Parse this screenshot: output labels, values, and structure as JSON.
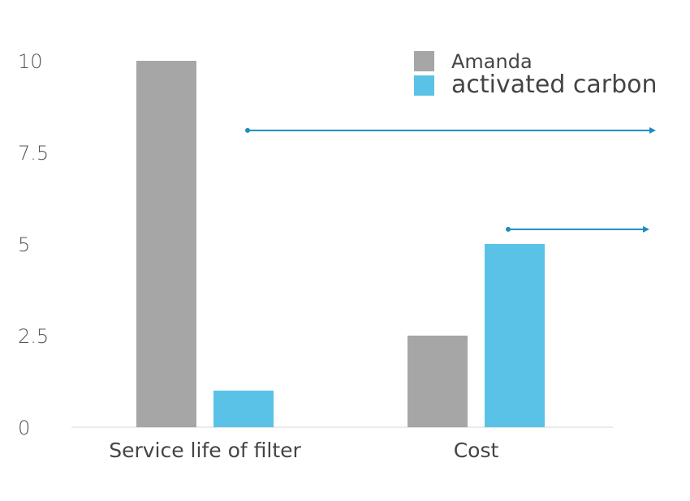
{
  "chart_data": {
    "type": "bar",
    "categories": [
      "Service life of filter",
      "Cost"
    ],
    "series": [
      {
        "name": "Amanda",
        "values": [
          10,
          2.5
        ],
        "color": "#a6a6a6"
      },
      {
        "name": "activated carbon",
        "values": [
          1,
          5
        ],
        "color": "#5bc2e7"
      }
    ],
    "ylim": [
      0,
      10
    ],
    "yticks": [
      0,
      2.5,
      5,
      7.5,
      10
    ],
    "ytick_labels": [
      "0",
      "2.5",
      "5",
      "7.5",
      "10"
    ],
    "grid": false,
    "legend": "top-right",
    "annotations": [
      {
        "type": "arrow",
        "y": 8.1,
        "color": "#1b8cc0"
      },
      {
        "type": "arrow",
        "y": 5.4,
        "color": "#1b8cc0"
      }
    ]
  }
}
